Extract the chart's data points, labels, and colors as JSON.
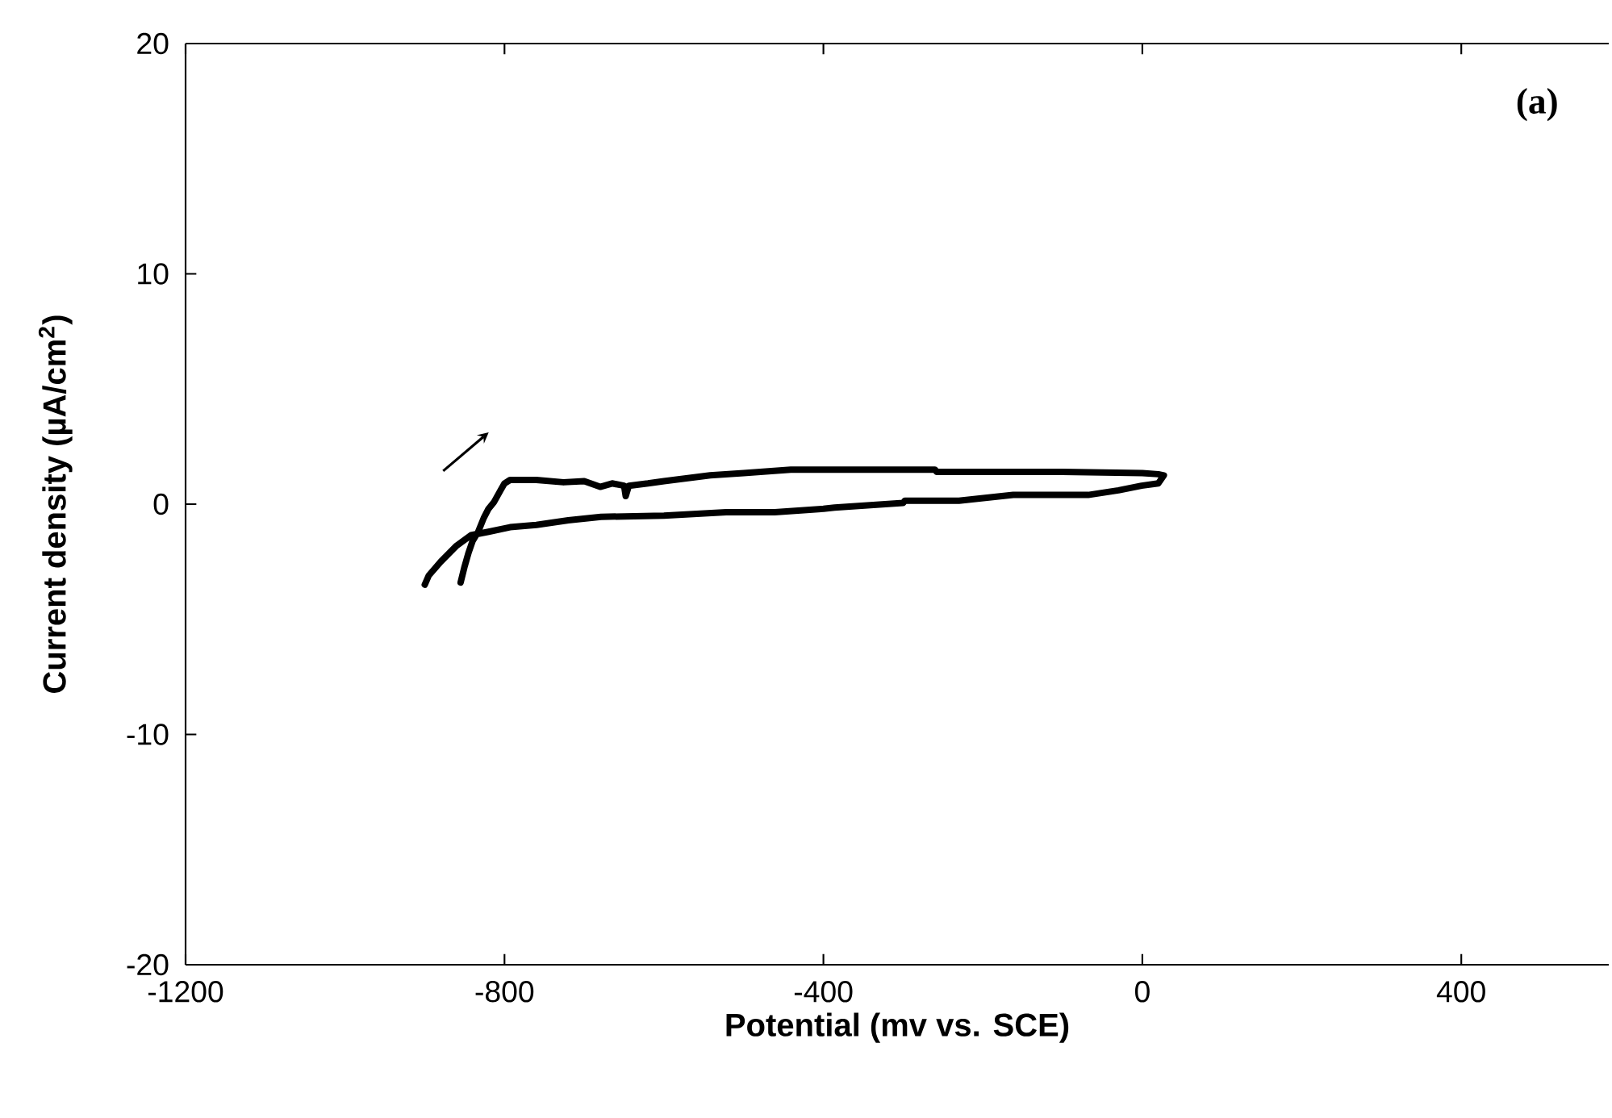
{
  "chart_data": {
    "type": "line",
    "xlabel": "Potential (mv vs. SCE)",
    "ylabel": "Current density (µA/cm$^{2}$)",
    "xlim": [
      -1200,
      585
    ],
    "ylim": [
      -20,
      20
    ],
    "xticks": [
      -1200,
      -800,
      -400,
      0,
      400
    ],
    "yticks": [
      -20,
      -10,
      0,
      10,
      20
    ],
    "grid": false,
    "marker": "none",
    "line_style": "solid",
    "annotations": [
      "(a)"
    ],
    "series": [
      {
        "color": "#000000",
        "x": [
          -855,
          -850,
          -845,
          -840,
          -833,
          -826,
          -820,
          -813,
          -805,
          -800,
          -793,
          -760,
          -726,
          -700,
          -680,
          -665,
          -650,
          -648,
          -644,
          -620,
          -600,
          -542,
          -500,
          -441,
          -260,
          -258,
          -200,
          -100,
          0,
          20,
          27,
          20,
          -1,
          -30,
          -68,
          -162,
          -230,
          -298,
          -300,
          -386,
          -400,
          -461,
          -522,
          -600,
          -679,
          -720,
          -760,
          -793,
          -820,
          -842,
          -860,
          -880,
          -895,
          -900
        ],
        "values": [
          -3.4,
          -2.7,
          -2.1,
          -1.6,
          -1.2,
          -0.6,
          -0.2,
          0.1,
          0.6,
          0.9,
          1.05,
          1.05,
          0.95,
          1.0,
          0.75,
          0.9,
          0.8,
          0.35,
          0.8,
          0.9,
          1.0,
          1.25,
          1.35,
          1.5,
          1.5,
          1.4,
          1.4,
          1.4,
          1.35,
          1.3,
          1.25,
          0.9,
          0.8,
          0.6,
          0.4,
          0.4,
          0.15,
          0.15,
          0.05,
          -0.15,
          -0.2,
          -0.35,
          -0.35,
          -0.5,
          -0.55,
          -0.7,
          -0.9,
          -1.0,
          -1.2,
          -1.35,
          -1.8,
          -2.5,
          -3.1,
          -3.5
        ]
      }
    ]
  }
}
